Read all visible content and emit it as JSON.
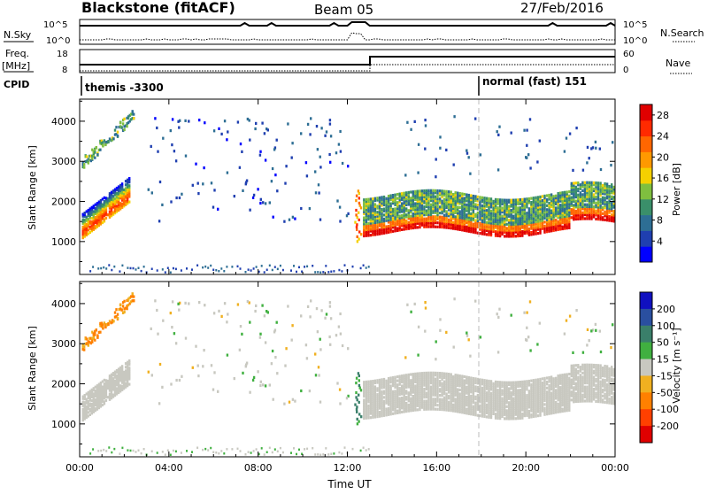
{
  "header": {
    "station": "Blackstone (fitACF)",
    "beam": "Beam 05",
    "date": "27/Feb/2016"
  },
  "status_panels": {
    "nsky_label": "N.Sky",
    "nsky_ticks": [
      "10^5",
      "10^0"
    ],
    "nsearch_label": "N.Search",
    "freq_label_line1": "Freq.",
    "freq_label_line2": "[MHz]",
    "freq_ticks": [
      "18",
      "8"
    ],
    "nave_label": "Nave",
    "nave_ticks": [
      "60",
      "0"
    ],
    "cpid_label": "CPID",
    "cpid_segments": [
      {
        "label": "themis -3300",
        "start_hour": 0
      },
      {
        "label": "normal (fast) 151",
        "start_hour": 18
      }
    ]
  },
  "chart_data": [
    {
      "type": "heatmap",
      "name": "power",
      "ylabel": "Slant Range [km]",
      "y_ticks": [
        1000,
        2000,
        3000,
        4000
      ],
      "ylim": [
        180,
        4550
      ],
      "xlim": [
        0,
        24
      ],
      "x_ticks": [
        "00:00",
        "04:00",
        "08:00",
        "12:00",
        "16:00",
        "20:00",
        "00:00"
      ],
      "colorbar": {
        "label": "Power [dB]",
        "ticks": [
          4,
          8,
          12,
          16,
          20,
          24,
          28
        ],
        "colors": [
          "#0000ff",
          "#1f3fb0",
          "#2d6e94",
          "#3a8f6a",
          "#7fbf3f",
          "#f5d000",
          "#ff9900",
          "#ff6600",
          "#ff2a00",
          "#e00000"
        ],
        "range": [
          0,
          30
        ]
      }
    },
    {
      "type": "heatmap",
      "name": "velocity",
      "ylabel": "Slant Range [km]",
      "y_ticks": [
        1000,
        2000,
        3000,
        4000
      ],
      "ylim": [
        180,
        4550
      ],
      "xlim": [
        0,
        24
      ],
      "x_ticks": [
        "00:00",
        "04:00",
        "08:00",
        "12:00",
        "16:00",
        "20:00",
        "00:00"
      ],
      "xlabel": "Time UT",
      "colorbar": {
        "label": "Velocity [m s⁻¹]",
        "ticks": [
          200,
          100,
          50,
          15,
          -15,
          -50,
          -100,
          -200
        ],
        "colors": [
          "#1010c0",
          "#2a4fa0",
          "#3a7f6a",
          "#40b040",
          "#c8c8c0",
          "#f0b020",
          "#ff8000",
          "#ff4000",
          "#e00000"
        ]
      }
    }
  ]
}
